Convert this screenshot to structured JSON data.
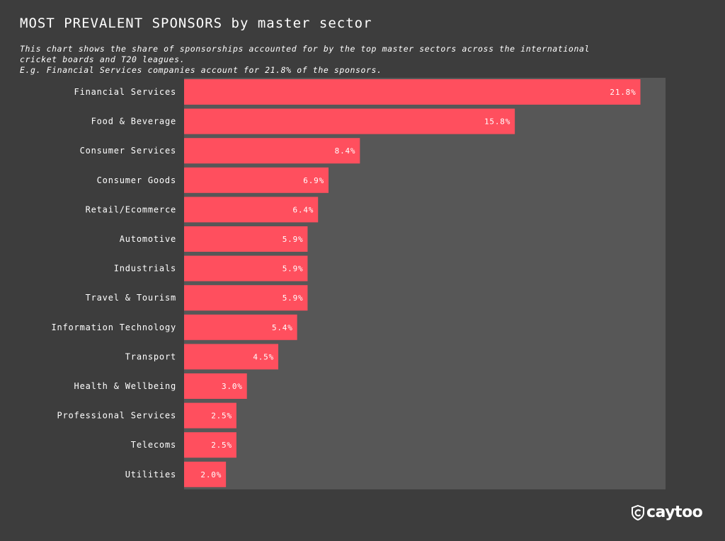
{
  "header": {
    "title": "MOST PREVALENT SPONSORS by master sector",
    "subtitle_lines": [
      "This chart shows the share of sponsorships accounted for by the top master sectors across the international",
      "cricket boards and T20 leagues.",
      "E.g. Financial Services companies account for 21.8% of the sponsors."
    ]
  },
  "brand": {
    "name": "caytoo",
    "logo_icon": "shield-c-icon"
  },
  "colors": {
    "bar": "#ff4f5e",
    "background": "#3d3d3d",
    "plot_background": "#575757",
    "text": "#ffffff"
  },
  "chart_data": {
    "type": "bar",
    "orientation": "horizontal",
    "title": "MOST PREVALENT SPONSORS by master sector",
    "categories": [
      "Financial Services",
      "Food & Beverage",
      "Consumer Services",
      "Consumer Goods",
      "Retail/Ecommerce",
      "Automotive",
      "Industrials",
      "Travel & Tourism",
      "Information Technology",
      "Transport",
      "Health & Wellbeing",
      "Professional Services",
      "Telecoms",
      "Utilities"
    ],
    "values": [
      21.8,
      15.8,
      8.4,
      6.9,
      6.4,
      5.9,
      5.9,
      5.9,
      5.4,
      4.5,
      3.0,
      2.5,
      2.5,
      2.0
    ],
    "value_labels": [
      "21.8%",
      "15.8%",
      "8.4%",
      "6.9%",
      "6.4%",
      "5.9%",
      "5.9%",
      "5.9%",
      "5.4%",
      "4.5%",
      "3.0%",
      "2.5%",
      "2.5%",
      "2.0%"
    ],
    "xlim": [
      0,
      23
    ],
    "xlabel": "",
    "ylabel": "",
    "grid": false,
    "legend": "none"
  }
}
